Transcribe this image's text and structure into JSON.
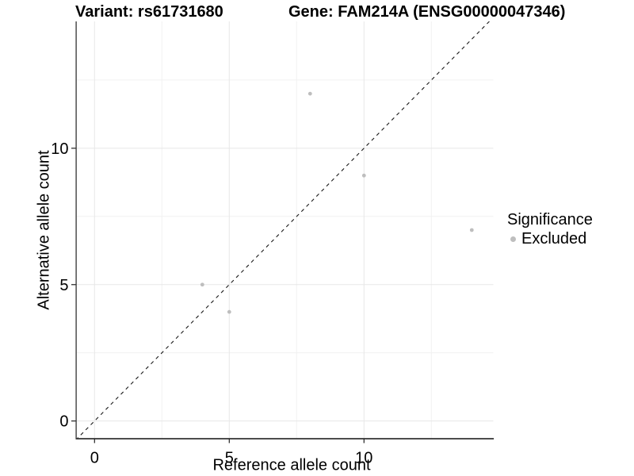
{
  "titles": {
    "variant": "Variant: rs61731680",
    "gene": "Gene: FAM214A (ENSG00000047346)"
  },
  "legend": {
    "title": "Significance",
    "items": [
      {
        "label": "Excluded",
        "color": "#bebebe",
        "marker": "circle"
      }
    ],
    "position": "right"
  },
  "colors": {
    "background": "#ffffff",
    "grid_major": "#e7e7e7",
    "grid_minor": "#f1f1f1",
    "axis_line": "#333333",
    "tick_mark": "#222222",
    "identity_line": "#1a1a1a",
    "point": "#bebebe",
    "text": "#000000"
  },
  "chart_data": {
    "type": "scatter",
    "title": "Variant: rs61731680 — Gene: FAM214A (ENSG00000047346)",
    "xlabel": "Reference allele count",
    "ylabel": "Alternative allele count",
    "xlim": [
      -0.7,
      14.8
    ],
    "ylim": [
      -0.65,
      14.65
    ],
    "x_major_ticks": [
      0,
      5,
      10
    ],
    "y_major_ticks": [
      0,
      5,
      10
    ],
    "x_minor_gridlines": [
      2.5,
      7.5,
      12.5
    ],
    "y_minor_gridlines": [
      2.5,
      7.5,
      12.5
    ],
    "grid": true,
    "identity_line": {
      "style": "dashed",
      "slope": 1,
      "intercept": 0
    },
    "series": [
      {
        "name": "Excluded",
        "color": "#bebebe",
        "points": [
          [
            4,
            5
          ],
          [
            5,
            4
          ],
          [
            8,
            12
          ],
          [
            10,
            9
          ],
          [
            14,
            7
          ]
        ]
      }
    ],
    "legend_position": "right"
  }
}
